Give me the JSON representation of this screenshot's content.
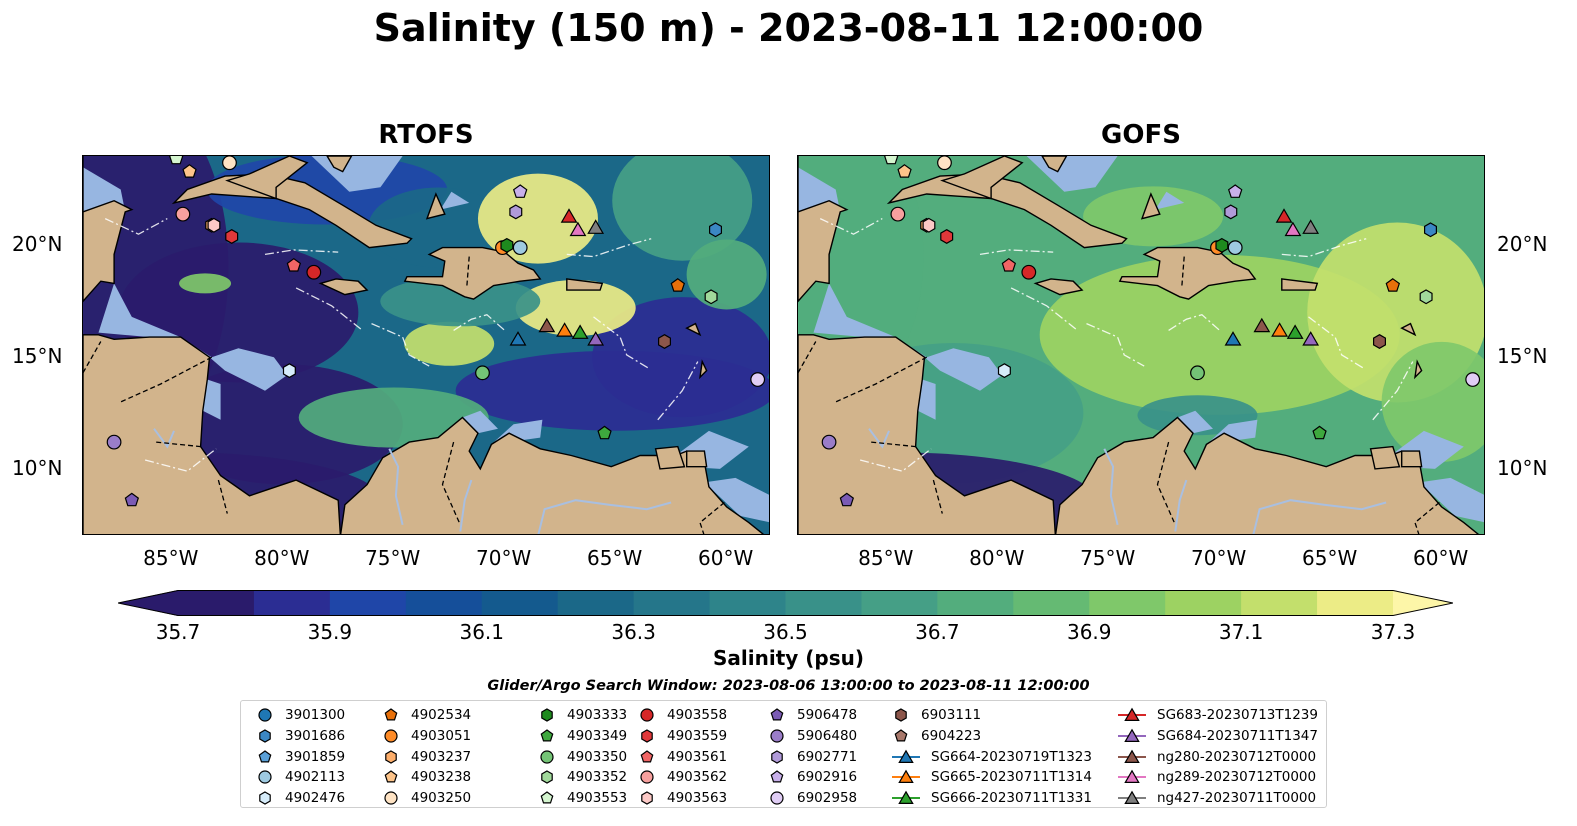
{
  "title": "Salinity (150 m) - 2023-08-11 12:00:00",
  "panels": [
    {
      "title": "RTOFS",
      "shows_left_lat_labels": true
    },
    {
      "title": "GOFS",
      "shows_right_lat_labels": true
    }
  ],
  "lat_labels": [
    "20°N",
    "15°N",
    "10°N"
  ],
  "lon_labels": [
    "85°W",
    "80°W",
    "75°W",
    "70°W",
    "65°W",
    "60°W"
  ],
  "colorbar": {
    "label": "Salinity (psu)",
    "min": 35.7,
    "max": 37.3,
    "ticks": [
      "35.7",
      "35.9",
      "36.1",
      "36.3",
      "36.5",
      "36.7",
      "36.9",
      "37.1",
      "37.3"
    ],
    "colormap": "haline",
    "colors": [
      "#2a1b6b",
      "#2b2d93",
      "#1f46a8",
      "#154f9a",
      "#145a8e",
      "#1b6888",
      "#25768a",
      "#2e848a",
      "#399189",
      "#459f86",
      "#53ad7d",
      "#65ba73",
      "#7fc86a",
      "#9dd262",
      "#c3df6c",
      "#ecec86"
    ]
  },
  "search_window": "Glider/Argo Search Window: 2023-08-06 13:00:00 to 2023-08-11 12:00:00",
  "legend": [
    {
      "label": "3901300",
      "marker": "circle",
      "color": "#1f77b4"
    },
    {
      "label": "3901686",
      "marker": "hexagon",
      "color": "#3b87c4"
    },
    {
      "label": "3901859",
      "marker": "pentagon",
      "color": "#5aa0d8"
    },
    {
      "label": "4902113",
      "marker": "circle",
      "color": "#9ecae1"
    },
    {
      "label": "4902476",
      "marker": "hexagon",
      "color": "#d6ecfa"
    },
    {
      "label": "4902534",
      "marker": "pentagon",
      "color": "#e8700a"
    },
    {
      "label": "4903051",
      "marker": "circle",
      "color": "#ff8c28"
    },
    {
      "label": "4903237",
      "marker": "hexagon",
      "color": "#fdae6b"
    },
    {
      "label": "4903238",
      "marker": "pentagon",
      "color": "#fdc48a"
    },
    {
      "label": "4903250",
      "marker": "circle",
      "color": "#fee3c4"
    },
    {
      "label": "4903333",
      "marker": "hexagon",
      "color": "#1e8a1e"
    },
    {
      "label": "4903349",
      "marker": "pentagon",
      "color": "#3ea83e"
    },
    {
      "label": "4903350",
      "marker": "circle",
      "color": "#74c476"
    },
    {
      "label": "4903352",
      "marker": "hexagon",
      "color": "#a1d99b"
    },
    {
      "label": "4903553",
      "marker": "pentagon",
      "color": "#d4f5cf"
    },
    {
      "label": "4903558",
      "marker": "circle",
      "color": "#d62728"
    },
    {
      "label": "4903559",
      "marker": "hexagon",
      "color": "#e0383a"
    },
    {
      "label": "4903561",
      "marker": "pentagon",
      "color": "#f06565"
    },
    {
      "label": "4903562",
      "marker": "circle",
      "color": "#f7a09e"
    },
    {
      "label": "4903563",
      "marker": "hexagon",
      "color": "#fcc9c6"
    },
    {
      "label": "5906478",
      "marker": "pentagon",
      "color": "#7b5bb5"
    },
    {
      "label": "5906480",
      "marker": "circle",
      "color": "#9a7dc8"
    },
    {
      "label": "6902771",
      "marker": "hexagon",
      "color": "#b09ad8"
    },
    {
      "label": "6902916",
      "marker": "pentagon",
      "color": "#c8b0ea"
    },
    {
      "label": "6902958",
      "marker": "circle",
      "color": "#e0cdf5"
    },
    {
      "label": "6903111",
      "marker": "hexagon",
      "color": "#8c564b"
    },
    {
      "label": "6904223",
      "marker": "pentagon",
      "color": "#a8786b"
    },
    {
      "label": "SG664-20230719T1323",
      "marker": "triangle-line",
      "color": "#1f77b4"
    },
    {
      "label": "SG665-20230711T1314",
      "marker": "triangle-line",
      "color": "#ff7f0e"
    },
    {
      "label": "SG666-20230711T1331",
      "marker": "triangle-line",
      "color": "#2ca02c"
    },
    {
      "label": "SG683-20230713T1239",
      "marker": "triangle-line",
      "color": "#d62728"
    },
    {
      "label": "SG684-20230711T1347",
      "marker": "triangle-line",
      "color": "#9467bd"
    },
    {
      "label": "ng280-20230712T0000",
      "marker": "triangle-line",
      "color": "#8c564b"
    },
    {
      "label": "ng289-20230712T0000",
      "marker": "triangle-line",
      "color": "#e377c2"
    },
    {
      "label": "ng427-20230711T0000",
      "marker": "triangle-line",
      "color": "#7f7f7f"
    }
  ],
  "observations": [
    {
      "id": "3901686",
      "lon": -60.5,
      "lat": 20.7
    },
    {
      "id": "4902113",
      "lon": -69.3,
      "lat": 19.9
    },
    {
      "id": "4902476",
      "lon": -79.7,
      "lat": 14.4
    },
    {
      "id": "4902534",
      "lon": -62.2,
      "lat": 18.2
    },
    {
      "id": "4903051",
      "lon": -70.1,
      "lat": 19.9
    },
    {
      "id": "4903237",
      "lon": -83.2,
      "lat": 20.9
    },
    {
      "id": "4903238",
      "lon": -84.2,
      "lat": 23.3
    },
    {
      "id": "4903250",
      "lon": -82.4,
      "lat": 23.7
    },
    {
      "id": "4903333",
      "lon": -69.9,
      "lat": 20.0
    },
    {
      "id": "4903349",
      "lon": -65.5,
      "lat": 11.6
    },
    {
      "id": "4903350",
      "lon": -71.0,
      "lat": 14.3
    },
    {
      "id": "4903352",
      "lon": -60.7,
      "lat": 17.7
    },
    {
      "id": "4903553",
      "lon": -84.8,
      "lat": 23.9
    },
    {
      "id": "4903558",
      "lon": -78.6,
      "lat": 18.8
    },
    {
      "id": "4903559",
      "lon": -82.3,
      "lat": 20.4
    },
    {
      "id": "4903561",
      "lon": -79.5,
      "lat": 19.1
    },
    {
      "id": "4903562",
      "lon": -84.5,
      "lat": 21.4
    },
    {
      "id": "4903563",
      "lon": -83.1,
      "lat": 20.9
    },
    {
      "id": "5906478",
      "lon": -86.8,
      "lat": 8.6
    },
    {
      "id": "5906480",
      "lon": -87.6,
      "lat": 11.2
    },
    {
      "id": "6902771",
      "lon": -69.5,
      "lat": 21.5
    },
    {
      "id": "6902916",
      "lon": -69.3,
      "lat": 22.4
    },
    {
      "id": "6902958",
      "lon": -58.6,
      "lat": 14.0
    },
    {
      "id": "6903111",
      "lon": -62.8,
      "lat": 15.7
    },
    {
      "id": "SG664-20230719T1323",
      "lon": -69.4,
      "lat": 15.8
    },
    {
      "id": "SG665-20230711T1314",
      "lon": -67.3,
      "lat": 16.2
    },
    {
      "id": "SG666-20230711T1331",
      "lon": -66.6,
      "lat": 16.1
    },
    {
      "id": "SG683-20230713T1239",
      "lon": -67.1,
      "lat": 21.3
    },
    {
      "id": "SG684-20230711T1347",
      "lon": -65.9,
      "lat": 15.8
    },
    {
      "id": "ng280-20230712T0000",
      "lon": -68.1,
      "lat": 16.4
    },
    {
      "id": "ng289-20230712T0000",
      "lon": -66.7,
      "lat": 20.7
    },
    {
      "id": "ng427-20230711T0000",
      "lon": -65.9,
      "lat": 20.8
    }
  ],
  "map_extent": {
    "lon_min": -89,
    "lon_max": -58,
    "lat_min": 7,
    "lat_max": 24
  }
}
